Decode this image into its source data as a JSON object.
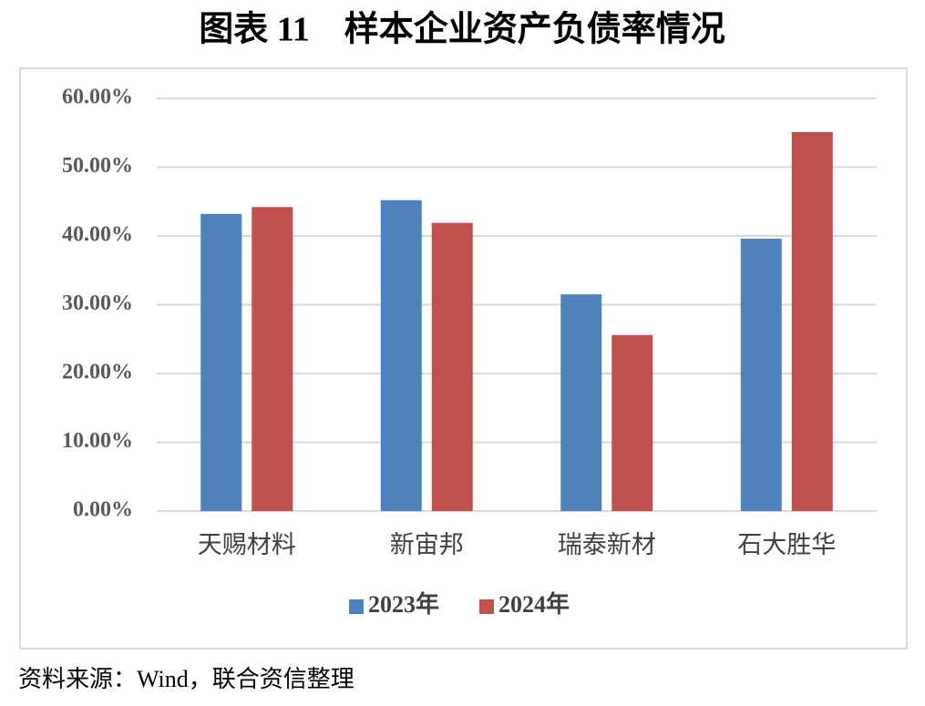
{
  "chart_data": {
    "type": "bar",
    "title": "图表 11　样本企业资产负债率情况",
    "categories": [
      "天赐材料",
      "新宙邦",
      "瑞泰新材",
      "石大胜华"
    ],
    "series": [
      {
        "name": "2023年",
        "color": "#4f81bd",
        "values": [
          43.2,
          45.2,
          31.5,
          39.6
        ]
      },
      {
        "name": "2024年",
        "color": "#c0504d",
        "values": [
          44.2,
          41.9,
          25.6,
          55.1
        ]
      }
    ],
    "ylim": [
      0,
      60
    ],
    "yticks": [
      {
        "value": 0,
        "label": "0.00%"
      },
      {
        "value": 10,
        "label": "10.00%"
      },
      {
        "value": 20,
        "label": "20.00%"
      },
      {
        "value": 30,
        "label": "30.00%"
      },
      {
        "value": 40,
        "label": "40.00%"
      },
      {
        "value": 50,
        "label": "50.00%"
      },
      {
        "value": 60,
        "label": "60.00%"
      }
    ],
    "grid": true,
    "legend": "bottom",
    "source": "资料来源：Wind，联合资信整理"
  }
}
